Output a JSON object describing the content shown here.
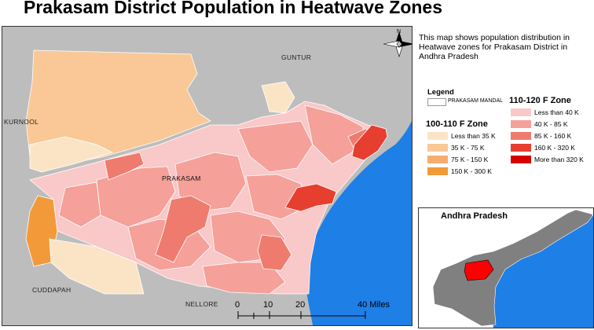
{
  "title": "Prakasam District Population in Heatwave Zones",
  "description": "This map shows population distribution in Heatwave zones for Prakasam District in Andhra Pradesh",
  "map": {
    "labels": {
      "guntur": "GUNTUR",
      "kurnool": "KURNOOL",
      "prakasam": "PRAKASAM",
      "cuddapah": "CUDDAPAH",
      "nellore": "NELLORE"
    },
    "north_label": "N"
  },
  "legend": {
    "title": "Legend",
    "prakasam_mandal": "PRAKASAM MANDAL",
    "zone_a": {
      "title": "100-110 F Zone",
      "items": [
        {
          "label": "Less than 35 K",
          "color": "#fbe4c6"
        },
        {
          "label": "35 K - 75 K",
          "color": "#f9c896"
        },
        {
          "label": "75 K - 150 K",
          "color": "#f7ac6e"
        },
        {
          "label": "150 K - 300 K",
          "color": "#f29a3a"
        }
      ]
    },
    "zone_b": {
      "title": "110-120 F Zone",
      "items": [
        {
          "label": "Less than 40 K",
          "color": "#f9c8c8"
        },
        {
          "label": "40 K - 85 K",
          "color": "#f5a099"
        },
        {
          "label": "85 K - 160 K",
          "color": "#ef7b6e"
        },
        {
          "label": "160 K - 320 K",
          "color": "#e63e2f"
        },
        {
          "label": "More than 320 K",
          "color": "#d50000"
        }
      ]
    }
  },
  "scale": {
    "ticks": [
      "0",
      "10",
      "20",
      "40 Miles"
    ]
  },
  "inset": {
    "title": "Andhra Pradesh"
  },
  "colors": {
    "background_region": "#bdbdbd",
    "sea": "#1e7fe6",
    "highlight": "#ff0000"
  }
}
